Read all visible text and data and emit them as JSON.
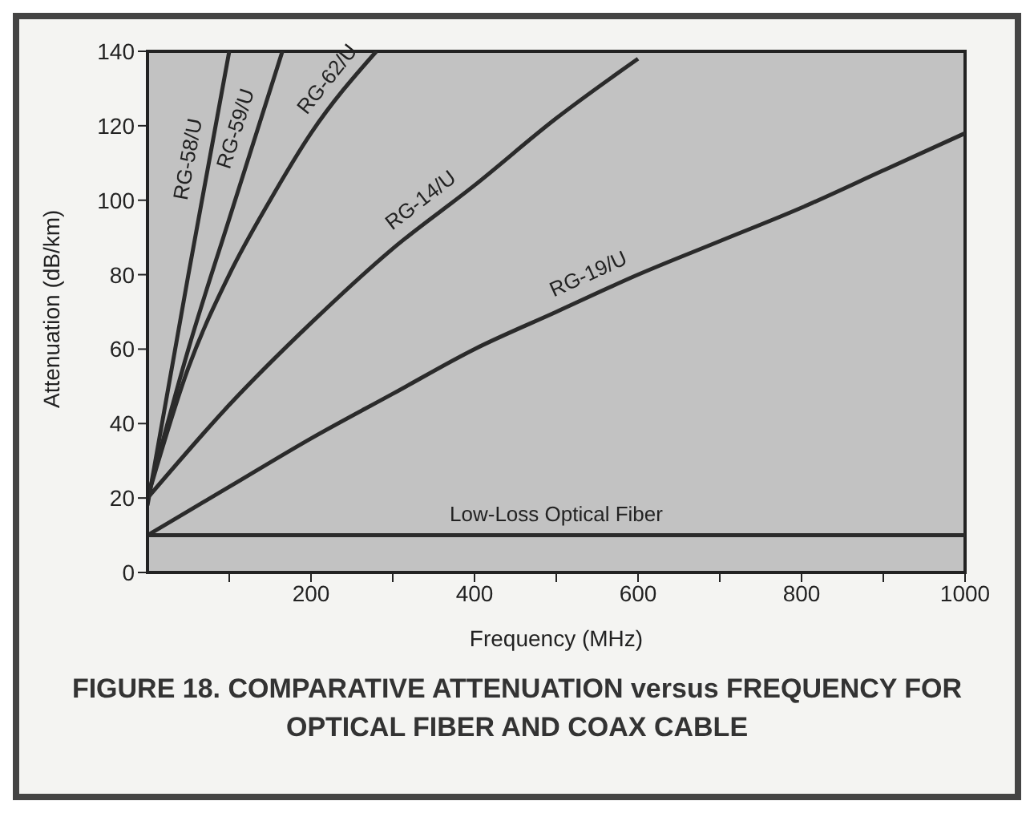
{
  "chart_data": {
    "type": "line",
    "title": "FIGURE 18. COMPARATIVE ATTENUATION versus FREQUENCY FOR OPTICAL FIBER AND COAX CABLE",
    "xlabel": "Frequency (MHz)",
    "ylabel": "Attenuation (dB/km)",
    "xlim": [
      0,
      1000
    ],
    "xticks": [
      {
        "value": 100,
        "label": null
      },
      200,
      {
        "value": 300,
        "label": null
      },
      400,
      {
        "value": 500,
        "label": null
      },
      600,
      {
        "value": 700,
        "label": null
      },
      800,
      {
        "value": 900,
        "label": null
      },
      1000
    ],
    "ylim": [
      0,
      140
    ],
    "yticks": [
      0,
      20,
      40,
      60,
      80,
      100,
      120,
      140
    ],
    "marker": "none",
    "line_style": "solid",
    "series": [
      {
        "name": "RG-58/U",
        "color": "#2b2b2b",
        "x": [
          0,
          50,
          100
        ],
        "values": [
          18,
          80,
          140
        ]
      },
      {
        "name": "RG-59/U",
        "color": "#2b2b2b",
        "x": [
          0,
          50,
          100,
          165
        ],
        "values": [
          20,
          60,
          95,
          140
        ]
      },
      {
        "name": "RG-62/U",
        "color": "#2b2b2b",
        "x": [
          0,
          50,
          100,
          150,
          200,
          280
        ],
        "values": [
          20,
          55,
          80,
          100,
          118,
          140
        ]
      },
      {
        "name": "RG-14/U",
        "color": "#2b2b2b",
        "x": [
          0,
          100,
          200,
          300,
          400,
          500,
          600
        ],
        "values": [
          20,
          45,
          67,
          87,
          104,
          122,
          138
        ]
      },
      {
        "name": "RG-19/U",
        "color": "#2b2b2b",
        "x": [
          0,
          100,
          200,
          300,
          400,
          500,
          600,
          700,
          800,
          900,
          1000
        ],
        "values": [
          10,
          23,
          36,
          48,
          60,
          70,
          80,
          89,
          98,
          108,
          118
        ]
      },
      {
        "name": "Low-Loss Optical Fiber",
        "color": "#2b2b2b",
        "x": [
          0,
          1000
        ],
        "values": [
          10,
          10
        ]
      }
    ]
  }
}
